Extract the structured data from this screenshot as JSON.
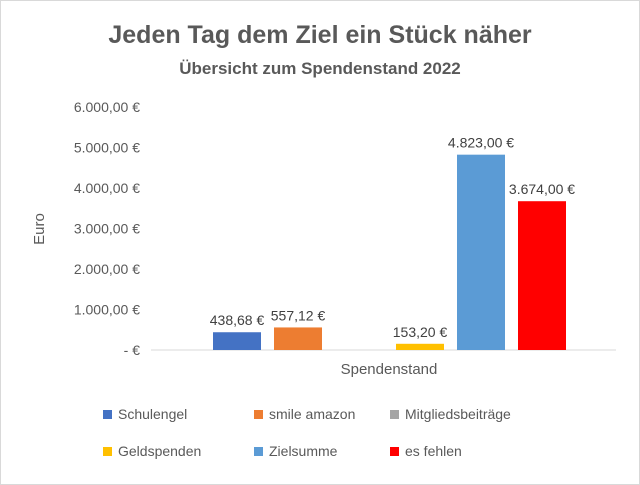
{
  "chart_data": {
    "type": "bar",
    "title": "Jeden Tag dem Ziel ein Stück näher",
    "subtitle": "Übersicht zum Spendenstand 2022",
    "xlabel": "Spendenstand",
    "ylabel": "Euro",
    "categories": [
      "Spendenstand"
    ],
    "ylim": [
      0,
      6000
    ],
    "ytick_labels": [
      "-   €",
      "1.000,00 €",
      "2.000,00 €",
      "3.000,00 €",
      "4.000,00 €",
      "5.000,00 €",
      "6.000,00 €"
    ],
    "grid": false,
    "legend_position": "bottom",
    "series": [
      {
        "name": "Schulengel",
        "values": [
          438.68
        ],
        "label": "438,68 €",
        "color": "#4472c4"
      },
      {
        "name": "smile amazon",
        "values": [
          557.12
        ],
        "label": "557,12 €",
        "color": "#ed7d31"
      },
      {
        "name": "Mitgliedsbeiträge",
        "values": [
          0
        ],
        "label": "",
        "color": "#a5a5a5"
      },
      {
        "name": "Geldspenden",
        "values": [
          153.2
        ],
        "label": "153,20 €",
        "color": "#ffc000"
      },
      {
        "name": "Zielsumme",
        "values": [
          4823
        ],
        "label": "4.823,00 €",
        "color": "#5b9bd5"
      },
      {
        "name": "es fehlen",
        "values": [
          3674
        ],
        "label": "3.674,00 €",
        "color": "#ff0000"
      }
    ]
  }
}
